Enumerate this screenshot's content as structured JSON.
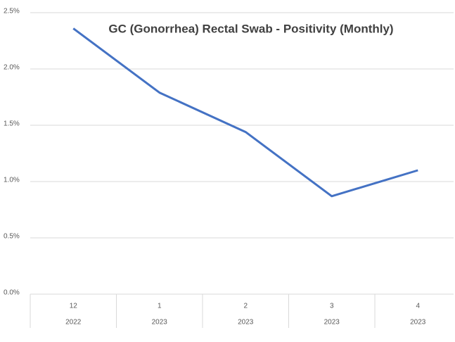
{
  "chart_data": {
    "type": "line",
    "title": "GC (Gonorrhea)  Rectal Swab - Positivity (Monthly)",
    "categories": [
      "12",
      "1",
      "2",
      "3",
      "4"
    ],
    "years": [
      "2022",
      "2023",
      "2023",
      "2023",
      "2023"
    ],
    "series": [
      {
        "name": "Positivity",
        "color": "#4472c4",
        "values": [
          2.36,
          1.79,
          1.44,
          0.87,
          1.1
        ]
      }
    ],
    "ylim": [
      0,
      2.5
    ],
    "yticks": [
      {
        "value": 0,
        "label": "0.0%"
      },
      {
        "value": 0.5,
        "label": "0.5%"
      },
      {
        "value": 1.0,
        "label": "1.0%"
      },
      {
        "value": 1.5,
        "label": "1.5%"
      },
      {
        "value": 2.0,
        "label": "2.0%"
      },
      {
        "value": 2.5,
        "label": "2.5%"
      }
    ],
    "grid": true
  }
}
